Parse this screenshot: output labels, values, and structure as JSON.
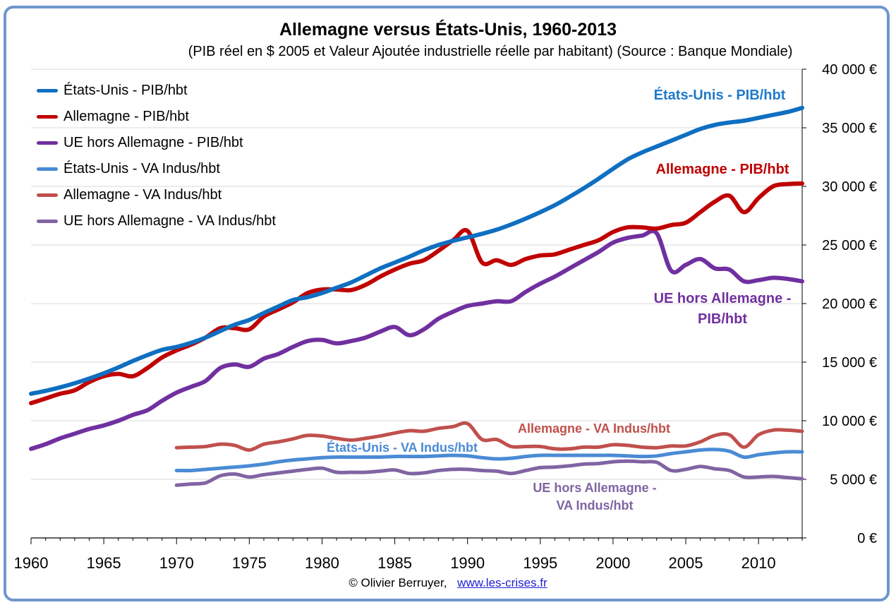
{
  "title": "Allemagne versus États-Unis, 1960-2013",
  "subtitle": "(PIB réel en $ 2005 et Valeur Ajoutée industrielle réelle par habitant) (Source : Banque Mondiale)",
  "footer": {
    "credit": "© Olivier Berruyer,",
    "link_text": "www.les-crises.fr"
  },
  "colors": {
    "frame": "#6f96cc",
    "grid": "#d9d9d9"
  },
  "chart_data": {
    "type": "line",
    "title": "Allemagne versus États-Unis, 1960-2013",
    "subtitle": "(PIB réel en $ 2005 et Valeur Ajoutée industrielle réelle par habitant) (Source : Banque Mondiale)",
    "xlim": [
      1960,
      2013
    ],
    "ylim": [
      0,
      40000
    ],
    "x_ticks": [
      "1960",
      "1965",
      "1970",
      "1975",
      "1980",
      "1985",
      "1990",
      "1995",
      "2000",
      "2005",
      "2010"
    ],
    "y_ticks": [
      "0 €",
      "5 000 €",
      "10 000 €",
      "15 000 €",
      "20 000 €",
      "25 000 €",
      "30 000 €",
      "35 000 €",
      "40 000 €"
    ],
    "y_axis_side": "right",
    "grid": "horizontal",
    "legend_position": "top-left",
    "series": [
      {
        "name": "États-Unis - PIB/hbt",
        "label": "États-Unis - PIB/hbt",
        "color": "#0f6fc1",
        "width": 6,
        "x": [
          1960,
          1961,
          1962,
          1963,
          1964,
          1965,
          1966,
          1967,
          1968,
          1969,
          1970,
          1971,
          1972,
          1973,
          1974,
          1975,
          1976,
          1977,
          1978,
          1979,
          1980,
          1981,
          1982,
          1983,
          1984,
          1985,
          1986,
          1987,
          1988,
          1989,
          1990,
          1991,
          1992,
          1993,
          1994,
          1995,
          1996,
          1997,
          1998,
          1999,
          2000,
          2001,
          2002,
          2003,
          2004,
          2005,
          2006,
          2007,
          2008,
          2009,
          2010,
          2011,
          2012,
          2013
        ],
        "values": [
          12300,
          12550,
          12850,
          13200,
          13600,
          14050,
          14550,
          15100,
          15600,
          16050,
          16300,
          16650,
          17100,
          17650,
          18200,
          18600,
          19200,
          19750,
          20300,
          20550,
          20900,
          21350,
          21800,
          22400,
          23000,
          23500,
          24000,
          24550,
          25000,
          25350,
          25650,
          25950,
          26300,
          26750,
          27250,
          27800,
          28400,
          29100,
          29850,
          30650,
          31500,
          32300,
          32900,
          33400,
          33900,
          34400,
          34900,
          35250,
          35450,
          35600,
          35850,
          36100,
          36350,
          36700
        ]
      },
      {
        "name": "Allemagne - PIB/hbt",
        "label": "Allemagne - PIB/hbt",
        "color": "#c00000",
        "width": 6,
        "x": [
          1960,
          1961,
          1962,
          1963,
          1964,
          1965,
          1966,
          1967,
          1968,
          1969,
          1970,
          1971,
          1972,
          1973,
          1974,
          1975,
          1976,
          1977,
          1978,
          1979,
          1980,
          1981,
          1982,
          1983,
          1984,
          1985,
          1986,
          1987,
          1988,
          1989,
          1990,
          1991,
          1992,
          1993,
          1994,
          1995,
          1996,
          1997,
          1998,
          1999,
          2000,
          2001,
          2002,
          2003,
          2004,
          2005,
          2006,
          2007,
          2008,
          2009,
          2010,
          2011,
          2012,
          2013
        ],
        "values": [
          11500,
          11900,
          12300,
          12600,
          13300,
          13800,
          14000,
          13800,
          14500,
          15400,
          16000,
          16500,
          17100,
          17900,
          17900,
          17800,
          18900,
          19500,
          20100,
          20900,
          21200,
          21200,
          21150,
          21600,
          22300,
          22900,
          23400,
          23700,
          24500,
          25400,
          26200,
          23500,
          23700,
          23300,
          23800,
          24100,
          24200,
          24600,
          25000,
          25400,
          26100,
          26500,
          26500,
          26400,
          26700,
          26900,
          27800,
          28700,
          29200,
          27800,
          29000,
          30000,
          30200,
          30250
        ]
      },
      {
        "name": "UE hors Allemagne - PIB/hbt",
        "label": "UE hors Allemagne - PIB/hbt",
        "color": "#7030a0",
        "width": 6,
        "x": [
          1960,
          1961,
          1962,
          1963,
          1964,
          1965,
          1966,
          1967,
          1968,
          1969,
          1970,
          1971,
          1972,
          1973,
          1974,
          1975,
          1976,
          1977,
          1978,
          1979,
          1980,
          1981,
          1982,
          1983,
          1984,
          1985,
          1986,
          1987,
          1988,
          1989,
          1990,
          1991,
          1992,
          1993,
          1994,
          1995,
          1996,
          1997,
          1998,
          1999,
          2000,
          2001,
          2002,
          2003,
          2004,
          2005,
          2006,
          2007,
          2008,
          2009,
          2010,
          2011,
          2012,
          2013
        ],
        "values": [
          7600,
          8000,
          8500,
          8900,
          9300,
          9600,
          10000,
          10500,
          10900,
          11700,
          12400,
          12900,
          13400,
          14500,
          14800,
          14600,
          15300,
          15700,
          16300,
          16800,
          16900,
          16600,
          16800,
          17100,
          17600,
          18000,
          17300,
          17800,
          18700,
          19300,
          19800,
          20000,
          20200,
          20200,
          21000,
          21700,
          22300,
          23000,
          23700,
          24400,
          25200,
          25600,
          25800,
          26000,
          22800,
          23300,
          23800,
          23000,
          22900,
          21900,
          22000,
          22200,
          22100,
          21900
        ]
      },
      {
        "name": "États-Unis - VA Indus/hbt",
        "label": "États-Unis - VA Indus/hbt",
        "color": "#4a8bd5",
        "width": 5,
        "x": [
          1970,
          1971,
          1972,
          1973,
          1974,
          1975,
          1976,
          1977,
          1978,
          1979,
          1980,
          1981,
          1982,
          1983,
          1984,
          1985,
          1986,
          1987,
          1988,
          1989,
          1990,
          1991,
          1992,
          1993,
          1994,
          1995,
          1996,
          1997,
          1998,
          1999,
          2000,
          2001,
          2002,
          2003,
          2004,
          2005,
          2006,
          2007,
          2008,
          2009,
          2010,
          2011,
          2012,
          2013
        ],
        "values": [
          5750,
          5750,
          5850,
          5950,
          6050,
          6150,
          6300,
          6500,
          6650,
          6750,
          6850,
          6900,
          6900,
          6900,
          6900,
          6950,
          6950,
          6950,
          7000,
          7050,
          7000,
          6850,
          6750,
          6800,
          6950,
          7050,
          7050,
          7050,
          7050,
          7050,
          7050,
          7000,
          6950,
          7000,
          7200,
          7350,
          7500,
          7550,
          7400,
          6900,
          7100,
          7250,
          7350,
          7350
        ]
      },
      {
        "name": "Allemagne - VA Indus/hbt",
        "label": "Allemagne - VA Indus/hbt",
        "color": "#c0504d",
        "width": 5,
        "x": [
          1970,
          1971,
          1972,
          1973,
          1974,
          1975,
          1976,
          1977,
          1978,
          1979,
          1980,
          1981,
          1982,
          1983,
          1984,
          1985,
          1986,
          1987,
          1988,
          1989,
          1990,
          1991,
          1992,
          1993,
          1994,
          1995,
          1996,
          1997,
          1998,
          1999,
          2000,
          2001,
          2002,
          2003,
          2004,
          2005,
          2006,
          2007,
          2008,
          2009,
          2010,
          2011,
          2012,
          2013
        ],
        "values": [
          7700,
          7750,
          7800,
          8000,
          7900,
          7500,
          8000,
          8200,
          8450,
          8750,
          8700,
          8500,
          8350,
          8500,
          8700,
          8950,
          9150,
          9100,
          9350,
          9500,
          9750,
          8400,
          8400,
          7800,
          7800,
          7800,
          7600,
          7600,
          7750,
          7750,
          7950,
          7900,
          7750,
          7700,
          7850,
          7850,
          8200,
          8750,
          8800,
          7750,
          8800,
          9200,
          9200,
          9100
        ]
      },
      {
        "name": "UE hors Allemagne - VA Indus/hbt",
        "label": "UE hors Allemagne - VA Indus/hbt",
        "color": "#8064a2",
        "width": 5,
        "x": [
          1970,
          1971,
          1972,
          1973,
          1974,
          1975,
          1976,
          1977,
          1978,
          1979,
          1980,
          1981,
          1982,
          1983,
          1984,
          1985,
          1986,
          1987,
          1988,
          1989,
          1990,
          1991,
          1992,
          1993,
          1994,
          1995,
          1996,
          1997,
          1998,
          1999,
          2000,
          2001,
          2002,
          2003,
          2004,
          2005,
          2006,
          2007,
          2008,
          2009,
          2010,
          2011,
          2012,
          2013
        ],
        "values": [
          4500,
          4600,
          4700,
          5300,
          5450,
          5200,
          5400,
          5550,
          5700,
          5850,
          5950,
          5600,
          5600,
          5600,
          5700,
          5800,
          5500,
          5550,
          5750,
          5850,
          5850,
          5750,
          5700,
          5500,
          5750,
          6000,
          6050,
          6150,
          6300,
          6350,
          6500,
          6550,
          6500,
          6450,
          5750,
          5850,
          6100,
          5900,
          5750,
          5200,
          5200,
          5250,
          5150,
          5050
        ]
      }
    ],
    "annotations": [
      {
        "lines": [
          "États-Unis - PIB/hbt"
        ],
        "color": "#1f7ac9"
      },
      {
        "lines": [
          "Allemagne - PIB/hbt"
        ],
        "color": "#c00000"
      },
      {
        "lines": [
          "UE hors Allemagne -",
          "PIB/hbt"
        ],
        "color": "#7030a0"
      },
      {
        "lines": [
          "Allemagne - VA Indus/hbt"
        ],
        "color": "#c0504d"
      },
      {
        "lines": [
          "États-Unis  - VA Indus/hbt"
        ],
        "color": "#4a8bd5"
      },
      {
        "lines": [
          "UE hors Allemagne -",
          "VA Indus/hbt"
        ],
        "color": "#8064a2"
      }
    ]
  }
}
